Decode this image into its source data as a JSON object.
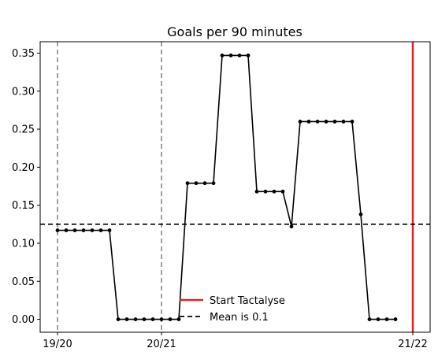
{
  "chart_data": {
    "type": "line",
    "title": "Goals per 90 minutes",
    "xlabel": "",
    "ylabel": "",
    "x_tick_labels": [
      {
        "label": "19/20",
        "x": 0
      },
      {
        "label": "20/21",
        "x": 12
      },
      {
        "label": "21/22",
        "x": 41
      }
    ],
    "xlim": [
      -2,
      43
    ],
    "ylim": [
      -0.017,
      0.365
    ],
    "yticks": [
      0.0,
      0.05,
      0.1,
      0.15,
      0.2,
      0.25,
      0.3,
      0.35
    ],
    "ytick_labels": [
      "0.00",
      "0.05",
      "0.10",
      "0.15",
      "0.20",
      "0.25",
      "0.30",
      "0.35"
    ],
    "grid": false,
    "series": [
      {
        "color": "#000000",
        "x": [
          0,
          1,
          2,
          3,
          4,
          5,
          6,
          7,
          8,
          9,
          10,
          11,
          12,
          13,
          14,
          15,
          16,
          17,
          18,
          19,
          20,
          21,
          22,
          23,
          24,
          25,
          26,
          27,
          28,
          29,
          30,
          31,
          32,
          33,
          34,
          35,
          36,
          37,
          38,
          39
        ],
        "values": [
          0.117,
          0.117,
          0.117,
          0.117,
          0.117,
          0.117,
          0.117,
          0,
          0,
          0,
          0,
          0,
          0,
          0,
          0,
          0.179,
          0.179,
          0.179,
          0.179,
          0.347,
          0.347,
          0.347,
          0.347,
          0.168,
          0.168,
          0.168,
          0.168,
          0.122,
          0.26,
          0.26,
          0.26,
          0.26,
          0.26,
          0.26,
          0.26,
          0.138,
          0,
          0,
          0,
          0
        ]
      }
    ],
    "season_lines": [
      0,
      12
    ],
    "season_line_color": "#808080",
    "start_line": {
      "x": 41,
      "color": "#d62728",
      "label": "Start Tactalyse"
    },
    "mean_line": {
      "y": 0.125,
      "color": "#000000",
      "label": "Mean is 0.1"
    },
    "legend_position": "lower center"
  }
}
